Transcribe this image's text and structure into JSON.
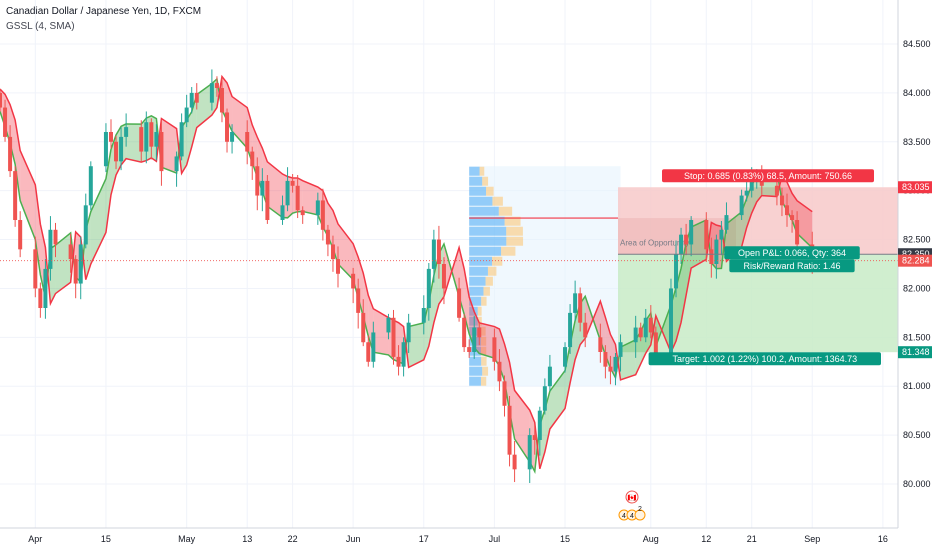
{
  "legend": {
    "symbol": "Canadian Dollar / Japanese Yen, 1D, FXCM",
    "indicator": "GSSL (4, SMA)"
  },
  "colors": {
    "up": "#26a69a",
    "down": "#ef5350",
    "ssl_up": "#4caf50",
    "ssl_down": "#f23645",
    "stop_zone": "#f7c9c9",
    "target_zone": "#c8ebc7",
    "stop_tag": "#f23645",
    "target_tag": "#089981",
    "pnl_tag": "#089981",
    "current_price": "#ef5350",
    "volume_profile": "#2196f3",
    "volume_profile_alt": "#ffb74d"
  },
  "chart_data": {
    "type": "candlestick",
    "y_axis": {
      "ylim": [
        79.55,
        84.95
      ],
      "ticks": [
        "80.000",
        "80.500",
        "81.000",
        "81.500",
        "82.000",
        "82.500",
        "83.000",
        "83.500",
        "84.000",
        "84.500"
      ],
      "tick_values": [
        80.0,
        80.5,
        81.0,
        81.5,
        82.0,
        82.5,
        83.0,
        83.5,
        84.0,
        84.5
      ]
    },
    "x_axis": {
      "start_date": "2019-03-25",
      "end_date": "2019-09-19",
      "ticks": [
        {
          "label": "Apr",
          "date": "2019-04-01"
        },
        {
          "label": "15",
          "date": "2019-04-15"
        },
        {
          "label": "May",
          "date": "2019-05-01"
        },
        {
          "label": "13",
          "date": "2019-05-13"
        },
        {
          "label": "22",
          "date": "2019-05-22"
        },
        {
          "label": "Jun",
          "date": "2019-06-03"
        },
        {
          "label": "17",
          "date": "2019-06-17"
        },
        {
          "label": "Jul",
          "date": "2019-07-01"
        },
        {
          "label": "15",
          "date": "2019-07-15"
        },
        {
          "label": "Aug",
          "date": "2019-08-01"
        },
        {
          "label": "12",
          "date": "2019-08-12"
        },
        {
          "label": "21",
          "date": "2019-08-21"
        },
        {
          "label": "Sep",
          "date": "2019-09-02"
        },
        {
          "label": "16",
          "date": "2019-09-16"
        }
      ]
    },
    "close_series": [
      83.85,
      83.55,
      83.2,
      82.7,
      82.4,
      82.0,
      81.8,
      82.2,
      82.6,
      82.45,
      82.3,
      82.05,
      82.45,
      82.85,
      83.25,
      83.6,
      83.5,
      83.3,
      83.55,
      83.65,
      83.4,
      83.7,
      83.45,
      83.6,
      83.2,
      83.35,
      83.7,
      83.85,
      84.0,
      83.9,
      84.1,
      84.05,
      83.8,
      83.5,
      83.6,
      83.4,
      83.25,
      82.95,
      83.1,
      82.7,
      82.85,
      83.1,
      83.05,
      82.8,
      82.75,
      82.9,
      82.6,
      82.45,
      82.3,
      82.15,
      82.0,
      81.75,
      81.45,
      81.25,
      81.55,
      81.7,
      81.3,
      81.2,
      81.45,
      81.65,
      81.8,
      82.2,
      82.5,
      82.25,
      82.0,
      81.7,
      81.4,
      81.35,
      81.6,
      81.5,
      81.25,
      81.05,
      80.8,
      80.3,
      80.15,
      80.5,
      80.45,
      80.75,
      81.0,
      81.2,
      81.4,
      81.75,
      81.95,
      81.65,
      81.5,
      81.35,
      81.2,
      81.15,
      81.3,
      81.45,
      81.6,
      81.5,
      81.7,
      81.55,
      81.3,
      82.0,
      82.35,
      82.55,
      82.45,
      82.7,
      82.4,
      82.25,
      82.5,
      82.6,
      82.75,
      82.95,
      83.0,
      83.1,
      83.15,
      83.05,
      82.95,
      82.85,
      82.75,
      82.7,
      82.45,
      82.3
    ],
    "overlay": {
      "current_price": {
        "label": "82.284",
        "value": 82.284
      },
      "last_marker": {
        "label": "82.350",
        "value": 82.35
      },
      "stop_price": {
        "label": "83.035",
        "value": 83.035
      },
      "target_price": {
        "label": "81.348",
        "value": 81.348
      },
      "stop_label": "Stop: 0.685 (0.83%) 68.5, Amount: 750.66",
      "target_label": "Target: 1.002 (1.22%) 100.2, Amount: 1364.73",
      "pnl_label": "Open P&L: 0.066, Qty: 364",
      "rr_label": "Risk/Reward Ratio: 1.46",
      "area_label": "Area of Opportunity",
      "volume_profile_range": {
        "from": "2019-06-26",
        "to": "2019-07-26",
        "high": 83.25,
        "low": 81.0
      }
    },
    "events": {
      "flag": "🇨🇦",
      "counts": [
        "4",
        "4",
        "2"
      ]
    }
  }
}
